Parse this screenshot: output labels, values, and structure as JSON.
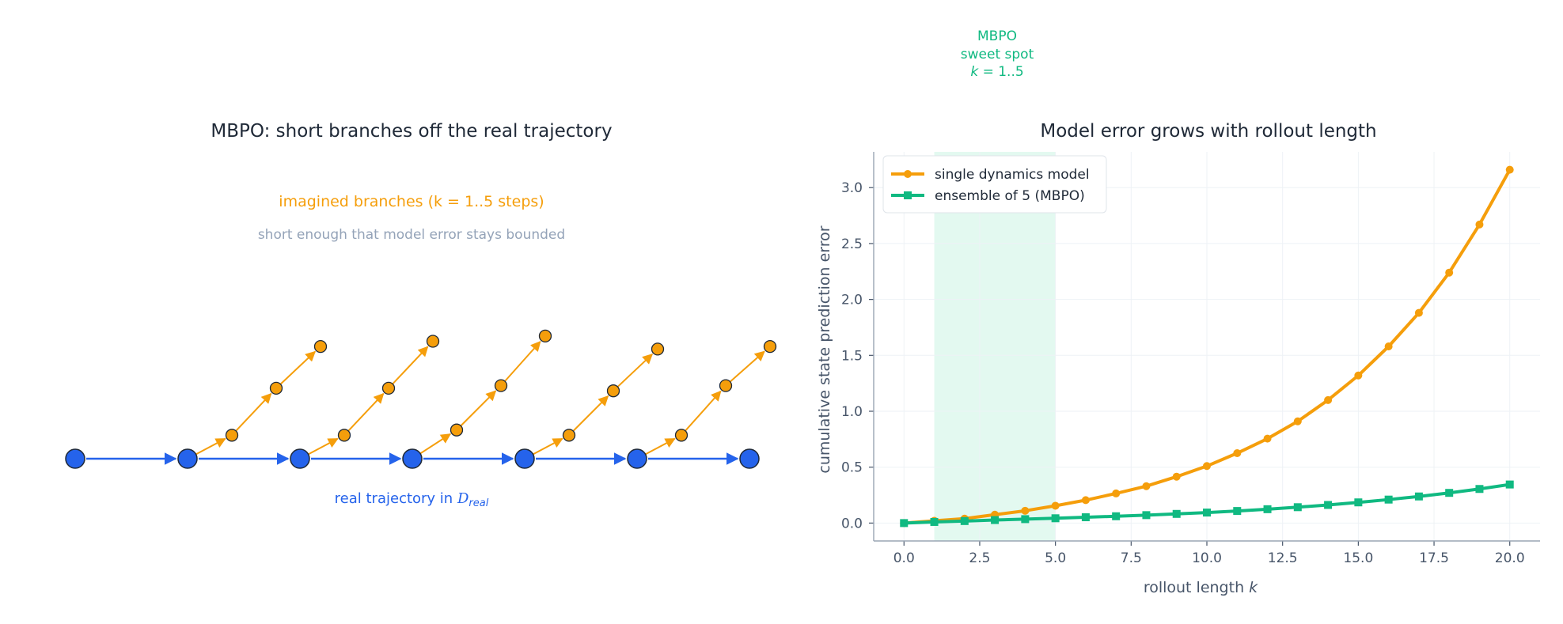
{
  "colors": {
    "text": "#1f2937",
    "axis": "#475569",
    "grid": "#eef2f6",
    "real": "#2563eb",
    "imagined": "#f59e0b",
    "ensemble": "#10b981",
    "subtle": "#94a3b8",
    "shade": "#d1f5e6"
  },
  "left_panel": {
    "title": "MBPO: short branches off the real trajectory",
    "branch_label": "imagined branches  (k = 1..5 steps)",
    "branch_note": "short enough that model error stays bounded",
    "real_label_prefix": "real trajectory in ",
    "real_label_math": "D",
    "real_label_sub": "real",
    "real_state_count": 7,
    "branches": [
      {
        "from_state": 1,
        "rise_steps": [
          0.9,
          2.7,
          4.3
        ]
      },
      {
        "from_state": 2,
        "rise_steps": [
          0.9,
          2.7,
          4.5
        ]
      },
      {
        "from_state": 3,
        "rise_steps": [
          1.1,
          2.8,
          4.7
        ]
      },
      {
        "from_state": 4,
        "rise_steps": [
          0.9,
          2.6,
          4.2
        ]
      },
      {
        "from_state": 5,
        "rise_steps": [
          0.9,
          2.8,
          4.3
        ]
      }
    ]
  },
  "right_panel": {
    "annotation": [
      "MBPO",
      "sweet spot",
      "k = 1..5"
    ],
    "legend": [
      "single dynamics model",
      "ensemble of 5 (MBPO)"
    ]
  },
  "chart_data": {
    "type": "line",
    "title": "Model error grows with rollout length",
    "xlabel": "rollout length k",
    "ylabel": "cumulative state prediction error",
    "xlim": [
      -1,
      21
    ],
    "ylim": [
      -0.16,
      3.32
    ],
    "xticks": [
      0.0,
      2.5,
      5.0,
      7.5,
      10.0,
      12.5,
      15.0,
      17.5,
      20.0
    ],
    "yticks": [
      0.0,
      0.5,
      1.0,
      1.5,
      2.0,
      2.5,
      3.0
    ],
    "grid": true,
    "legend_position": "top-left",
    "shaded_region": {
      "x": [
        1,
        5
      ],
      "label": "MBPO sweet spot k = 1..5"
    },
    "x": [
      0,
      1,
      2,
      3,
      4,
      5,
      6,
      7,
      8,
      9,
      10,
      11,
      12,
      13,
      14,
      15,
      16,
      17,
      18,
      19,
      20
    ],
    "series": [
      {
        "name": "single dynamics model",
        "marker": "circle",
        "values": [
          0.0,
          0.02,
          0.04,
          0.075,
          0.11,
          0.155,
          0.205,
          0.265,
          0.33,
          0.415,
          0.51,
          0.625,
          0.755,
          0.91,
          1.1,
          1.32,
          1.58,
          1.88,
          2.24,
          2.67,
          3.16
        ]
      },
      {
        "name": "ensemble of 5 (MBPO)",
        "marker": "square",
        "values": [
          0.0,
          0.01,
          0.018,
          0.027,
          0.035,
          0.043,
          0.052,
          0.061,
          0.071,
          0.082,
          0.094,
          0.108,
          0.124,
          0.142,
          0.162,
          0.185,
          0.21,
          0.238,
          0.27,
          0.305,
          0.345
        ]
      }
    ]
  }
}
